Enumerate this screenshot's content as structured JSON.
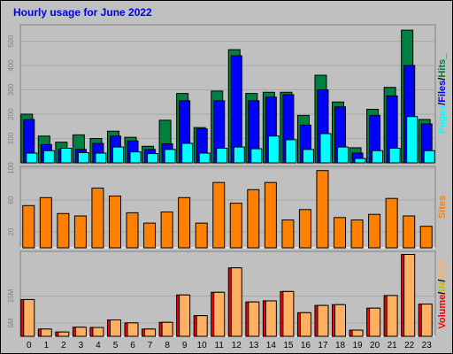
{
  "title": "Hourly usage for June 2022",
  "colors": {
    "bg": "#c0c0c0",
    "hits": "#008040",
    "files": "#0000ff",
    "pages": "#00ffff",
    "sites": "#ff8000",
    "volume": "#ff0000",
    "in": "#c0c000",
    "out": "#ffb060"
  },
  "chart_data": [
    {
      "type": "bar",
      "categories": [
        "0",
        "1",
        "2",
        "3",
        "4",
        "5",
        "6",
        "7",
        "8",
        "9",
        "10",
        "11",
        "12",
        "13",
        "14",
        "15",
        "16",
        "17",
        "18",
        "19",
        "20",
        "21",
        "22",
        "23"
      ],
      "series": [
        {
          "name": "Hits",
          "values": [
            200,
            110,
            85,
            115,
            100,
            130,
            105,
            68,
            175,
            285,
            145,
            295,
            465,
            285,
            290,
            290,
            195,
            360,
            250,
            62,
            220,
            310,
            545,
            178
          ]
        },
        {
          "name": "Files",
          "values": [
            178,
            75,
            55,
            55,
            80,
            110,
            90,
            55,
            78,
            255,
            140,
            255,
            440,
            255,
            270,
            280,
            155,
            300,
            230,
            40,
            195,
            275,
            400,
            160
          ]
        },
        {
          "name": "Pages",
          "values": [
            40,
            50,
            60,
            42,
            40,
            65,
            45,
            38,
            55,
            80,
            40,
            60,
            65,
            58,
            110,
            95,
            55,
            120,
            65,
            18,
            50,
            60,
            190,
            50
          ]
        }
      ],
      "yticks": [
        100,
        200,
        300,
        400,
        500
      ],
      "ylim": [
        0,
        560
      ],
      "right_label": [
        "Pages",
        "/",
        "Files",
        "/",
        "Hits_"
      ]
    },
    {
      "type": "bar",
      "categories": [
        "0",
        "1",
        "2",
        "3",
        "4",
        "5",
        "6",
        "7",
        "8",
        "9",
        "10",
        "11",
        "12",
        "13",
        "14",
        "15",
        "16",
        "17",
        "18",
        "19",
        "20",
        "21",
        "22",
        "23"
      ],
      "series": [
        {
          "name": "Sites",
          "values": [
            53,
            63,
            43,
            40,
            75,
            65,
            44,
            31,
            45,
            63,
            31,
            82,
            56,
            73,
            82,
            35,
            48,
            97,
            38,
            35,
            42,
            62,
            40,
            27
          ]
        }
      ],
      "yticks": [
        20,
        60,
        100
      ],
      "ylim": [
        0,
        100
      ],
      "right_label": [
        "Sites"
      ]
    },
    {
      "type": "bar",
      "categories": [
        "0",
        "1",
        "2",
        "3",
        "4",
        "5",
        "6",
        "7",
        "8",
        "9",
        "10",
        "11",
        "12",
        "13",
        "14",
        "15",
        "16",
        "17",
        "18",
        "19",
        "20",
        "21",
        "22",
        "23"
      ],
      "series": [
        {
          "name": "Volume",
          "values": [
            13.7,
            2.7,
            1.6,
            3.4,
            3.3,
            6.1,
            5.0,
            2.7,
            5.2,
            15.4,
            7.7,
            16.4,
            25.5,
            12.8,
            13.2,
            16.7,
            8.8,
            11.5,
            11.8,
            2.3,
            10.5,
            15.2,
            30.5,
            12.0
          ]
        }
      ],
      "yticks": [
        5,
        15
      ],
      "ytick_labels": [
        "5M",
        "15M"
      ],
      "ylim": [
        0,
        31
      ],
      "right_label": [
        "Volume",
        "/",
        "IN",
        "/",
        "OUT"
      ]
    }
  ]
}
